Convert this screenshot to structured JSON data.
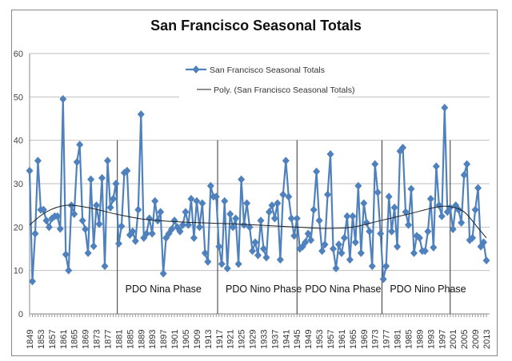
{
  "chart_data": {
    "type": "line",
    "title": "San Francisco Seasonal Totals",
    "xlabel": "",
    "ylabel": "",
    "ylim": [
      0,
      60
    ],
    "yticks": [
      0,
      10,
      20,
      30,
      40,
      50,
      60
    ],
    "xlim": [
      1849,
      2013
    ],
    "xtick_labels": [
      "1849",
      "1853",
      "1857",
      "1861",
      "1865",
      "1869",
      "1873",
      "1877",
      "1881",
      "1885",
      "1889",
      "1893",
      "1897",
      "1901",
      "1905",
      "1909",
      "1913",
      "1917",
      "1921",
      "1925",
      "1929",
      "1933",
      "1937",
      "1941",
      "1945",
      "1949",
      "1953",
      "1957",
      "1961",
      "1965",
      "1969",
      "1973",
      "1977",
      "1981",
      "1985",
      "1989",
      "1993",
      "1997",
      "2001",
      "2005",
      "2009",
      "2013"
    ],
    "grid": "horizontal",
    "legend_placement": "top-center",
    "series": [
      {
        "name": "San Francisco Seasonal Totals",
        "color": "#4f81bd",
        "marker": "diamond",
        "start_year": 1849,
        "values": [
          33,
          7.5,
          18.5,
          35.3,
          24,
          24,
          21.5,
          20,
          22,
          22.5,
          22.5,
          19.6,
          49.5,
          13.7,
          10,
          25,
          23,
          35,
          39,
          21.5,
          19.5,
          14,
          31,
          15.6,
          25,
          20.7,
          31.3,
          11,
          35.3,
          24.5,
          26.5,
          30,
          16.2,
          20.2,
          32.5,
          33,
          18.2,
          19,
          16.8,
          24,
          46,
          17.5,
          18.5,
          22,
          18.5,
          26,
          21.5,
          23.5,
          9.3,
          17.5,
          18.5,
          19.5,
          21.5,
          20,
          19,
          20.5,
          23.5,
          20.5,
          26.5,
          17.5,
          26,
          20,
          25.5,
          14,
          12,
          29.5,
          27,
          27,
          15.5,
          11.5,
          26,
          10.5,
          23,
          20,
          22,
          11.5,
          31,
          20.5,
          25.5,
          20,
          14.5,
          16.5,
          13.5,
          21.5,
          15,
          13,
          23.5,
          25,
          22,
          25.5,
          12.5,
          27.5,
          35.3,
          27,
          22,
          18,
          22,
          15,
          15.5,
          16.5,
          18.5,
          17,
          24,
          32.8,
          21.5,
          14.5,
          16,
          27.5,
          36.8,
          15,
          10.5,
          16,
          14,
          17.5,
          22.5,
          12.5,
          22.5,
          16.5,
          29.5,
          14,
          25.5,
          21,
          19,
          11,
          34.5,
          28,
          18.5,
          8,
          11,
          27,
          19,
          24.5,
          15.5,
          37.5,
          38.3,
          23.5,
          20.5,
          28.8,
          14,
          18,
          17.5,
          14.5,
          14.5,
          19,
          26.5,
          15.3,
          34,
          25,
          22.5,
          47.5,
          23.5,
          24.5,
          19.5,
          25,
          24,
          21,
          32,
          34.5,
          17,
          17.5,
          24,
          29,
          15.5,
          16.5,
          12.3
        ]
      },
      {
        "name": "Poly. (San Francisco Seasonal Totals)",
        "color": "#222222",
        "x": [
          1849,
          1855,
          1862,
          1870,
          1880,
          1890,
          1900,
          1910,
          1920,
          1930,
          1945,
          1955,
          1965,
          1975,
          1985,
          1995,
          2000,
          2005,
          2010,
          2013
        ],
        "values": [
          20.5,
          23.5,
          25,
          24.5,
          23,
          21.8,
          21.3,
          21,
          20.8,
          20.5,
          20,
          19.7,
          20,
          21.5,
          23,
          24.6,
          24.7,
          23.5,
          19.8,
          17.5
        ]
      }
    ],
    "annotations": [
      {
        "text": "PDO Nina Phase",
        "start": 1880.5,
        "end": 1916.5
      },
      {
        "text": "PDO Nino Phase",
        "start": 1916.5,
        "end": 1945
      },
      {
        "text": "PDO Nina Phase",
        "start": 1945,
        "end": 1975.5
      },
      {
        "text": "PDO Nino Phase",
        "start": 1975.5,
        "end": 2000
      }
    ]
  }
}
